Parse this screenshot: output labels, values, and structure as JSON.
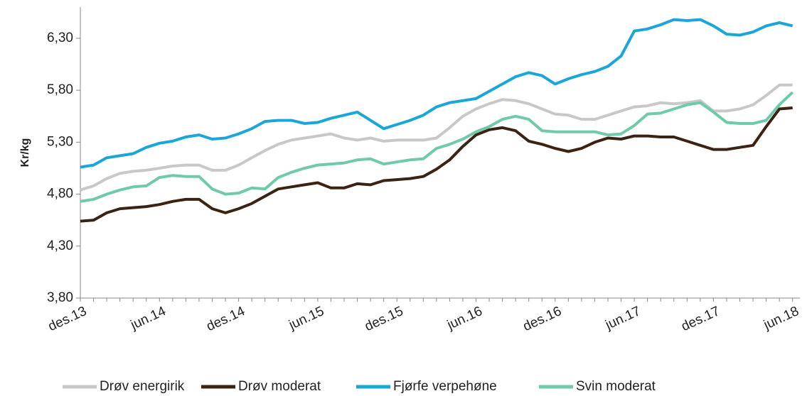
{
  "chart_data": {
    "type": "line",
    "y_label": "Kr/kg",
    "categories": [
      "des.13",
      null,
      null,
      null,
      null,
      null,
      "jun.14",
      null,
      null,
      null,
      null,
      null,
      "des.14",
      null,
      null,
      null,
      null,
      null,
      "jun.15",
      null,
      null,
      null,
      null,
      null,
      "des.15",
      null,
      null,
      null,
      null,
      null,
      "jun.16",
      null,
      null,
      null,
      null,
      null,
      "des.16",
      null,
      null,
      null,
      null,
      null,
      "jun.17",
      null,
      null,
      null,
      null,
      null,
      "des.17",
      null,
      null,
      null,
      null,
      null,
      "jun.18"
    ],
    "ylim": [
      3.8,
      6.6
    ],
    "yticks": [
      {
        "value": 3.8,
        "label": "3,80"
      },
      {
        "value": 4.3,
        "label": "4,30"
      },
      {
        "value": 4.8,
        "label": "4,80"
      },
      {
        "value": 5.3,
        "label": "5,30"
      },
      {
        "value": 5.8,
        "label": "5,80"
      },
      {
        "value": 6.3,
        "label": "6,30"
      }
    ],
    "legend": "bottom",
    "series": [
      {
        "name": "Drøv energirik",
        "color": "#c8c8c8",
        "values": [
          4.84,
          4.88,
          4.95,
          5.0,
          5.02,
          5.03,
          5.05,
          5.07,
          5.08,
          5.08,
          5.03,
          5.03,
          5.08,
          5.15,
          5.22,
          5.28,
          5.32,
          5.34,
          5.36,
          5.38,
          5.34,
          5.32,
          5.34,
          5.31,
          5.32,
          5.32,
          5.32,
          5.34,
          5.44,
          5.55,
          5.62,
          5.67,
          5.71,
          5.7,
          5.67,
          5.62,
          5.57,
          5.56,
          5.52,
          5.52,
          5.56,
          5.6,
          5.64,
          5.65,
          5.68,
          5.67,
          5.68,
          5.7,
          5.6,
          5.6,
          5.62,
          5.66,
          5.75,
          5.85,
          5.85
        ]
      },
      {
        "name": "Drøv moderat",
        "color": "#3b2314",
        "values": [
          4.54,
          4.55,
          4.62,
          4.66,
          4.67,
          4.68,
          4.7,
          4.73,
          4.75,
          4.75,
          4.66,
          4.62,
          4.66,
          4.71,
          4.78,
          4.85,
          4.87,
          4.89,
          4.91,
          4.86,
          4.86,
          4.9,
          4.89,
          4.93,
          4.94,
          4.95,
          4.97,
          5.04,
          5.13,
          5.26,
          5.37,
          5.42,
          5.44,
          5.41,
          5.31,
          5.28,
          5.24,
          5.21,
          5.24,
          5.3,
          5.34,
          5.33,
          5.36,
          5.36,
          5.35,
          5.35,
          5.31,
          5.27,
          5.23,
          5.23,
          5.25,
          5.27,
          5.45,
          5.62,
          5.63
        ]
      },
      {
        "name": "Fjørfe verpehøne",
        "color": "#1aa6d9",
        "values": [
          5.06,
          5.08,
          5.15,
          5.17,
          5.19,
          5.25,
          5.29,
          5.31,
          5.35,
          5.37,
          5.33,
          5.34,
          5.38,
          5.43,
          5.5,
          5.51,
          5.51,
          5.48,
          5.49,
          5.53,
          5.56,
          5.59,
          5.51,
          5.43,
          5.47,
          5.51,
          5.56,
          5.64,
          5.68,
          5.7,
          5.72,
          5.79,
          5.86,
          5.93,
          5.97,
          5.94,
          5.86,
          5.91,
          5.95,
          5.98,
          6.03,
          6.13,
          6.37,
          6.39,
          6.43,
          6.48,
          6.47,
          6.48,
          6.42,
          6.34,
          6.33,
          6.36,
          6.42,
          6.45,
          6.42
        ]
      },
      {
        "name": "Svin moderat",
        "color": "#6ecaa8",
        "values": [
          4.73,
          4.75,
          4.8,
          4.84,
          4.87,
          4.88,
          4.96,
          4.98,
          4.97,
          4.97,
          4.85,
          4.8,
          4.81,
          4.86,
          4.85,
          4.96,
          5.01,
          5.05,
          5.08,
          5.09,
          5.1,
          5.13,
          5.14,
          5.09,
          5.11,
          5.13,
          5.14,
          5.24,
          5.28,
          5.33,
          5.4,
          5.45,
          5.52,
          5.55,
          5.52,
          5.41,
          5.4,
          5.4,
          5.4,
          5.4,
          5.37,
          5.38,
          5.46,
          5.57,
          5.58,
          5.62,
          5.66,
          5.68,
          5.59,
          5.49,
          5.48,
          5.48,
          5.51,
          5.66,
          5.78
        ]
      }
    ]
  }
}
